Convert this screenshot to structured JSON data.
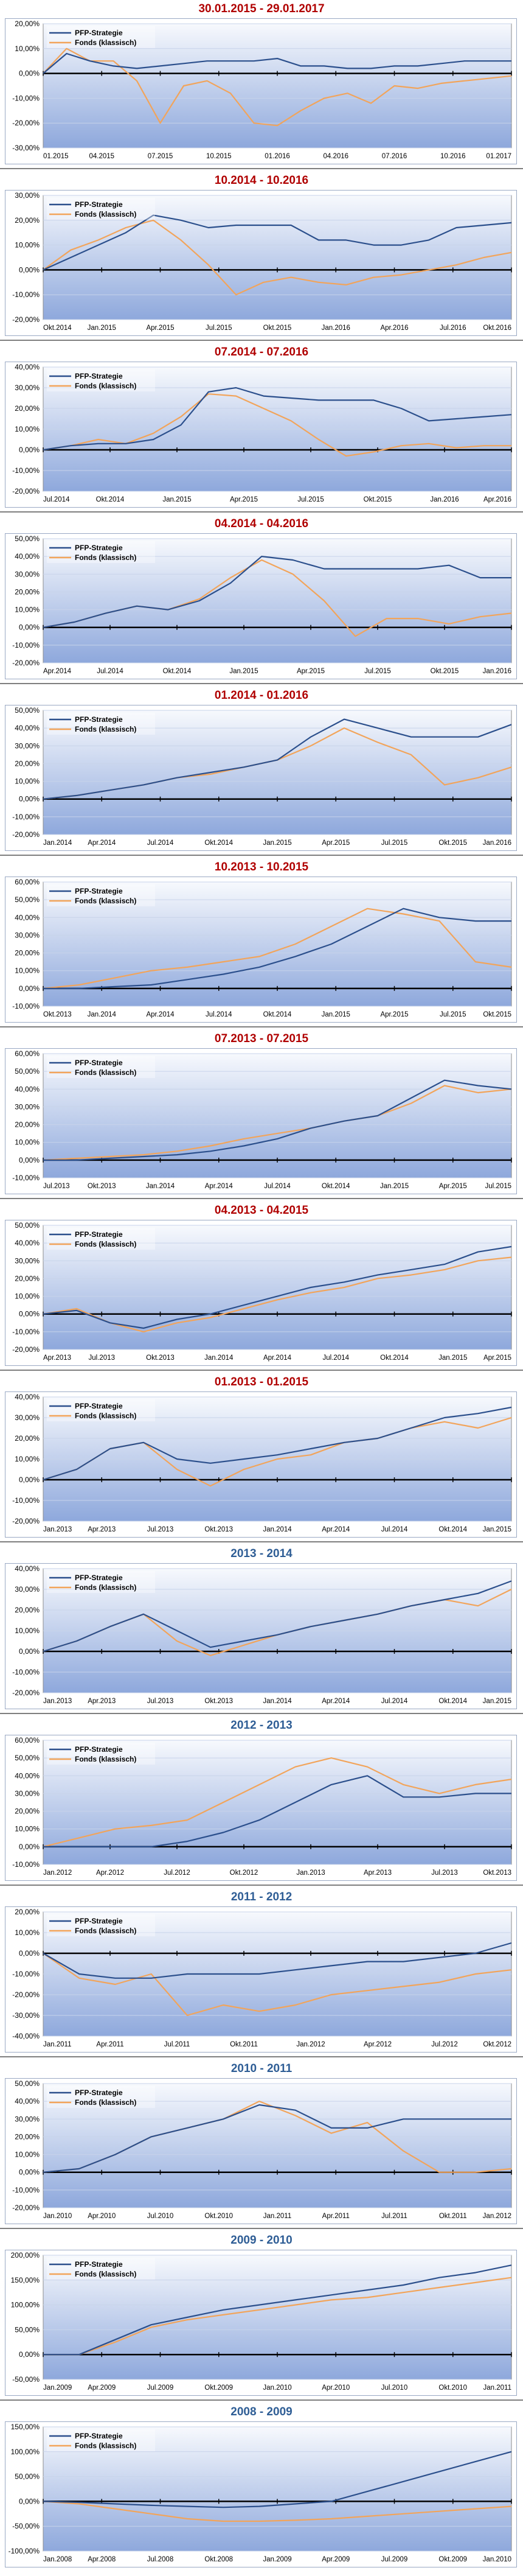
{
  "colors": {
    "strategy": "#2b4f8c",
    "fund": "#f2a45a",
    "title_red": "#b00000",
    "title_blue": "#2e5d95",
    "plot_bg_top": "#f7f9fd",
    "plot_bg_bottom": "#8ea8dc"
  },
  "chart_data": [
    {
      "type": "line",
      "title": "30.01.2015 - 29.01.2017",
      "title_color": "red",
      "legend": "top-left",
      "grid": true,
      "series": [
        {
          "name": "PFP-Strategie",
          "values": [
            0,
            8,
            5,
            3,
            2,
            3,
            4,
            5,
            5,
            5,
            6,
            3,
            3,
            2,
            2,
            3,
            3,
            4,
            5,
            5,
            5
          ]
        },
        {
          "name": "Fonds (klassisch)",
          "values": [
            0,
            10,
            5,
            5,
            -3,
            -20,
            -5,
            -3,
            -8,
            -20,
            -21,
            -15,
            -10,
            -8,
            -12,
            -5,
            -6,
            -4,
            -3,
            -2,
            -1
          ]
        }
      ],
      "yticks": [
        "20,00%",
        "10,00%",
        "0,00%",
        "-10,00%",
        "-20,00%",
        "-30,00%"
      ],
      "ylim": [
        -30,
        20
      ],
      "xticks": [
        "01.2015",
        "04.2015",
        "07.2015",
        "10.2015",
        "01.2016",
        "04.2016",
        "07.2016",
        "10.2016",
        "01.2017"
      ]
    },
    {
      "type": "line",
      "title": "10.2014 - 10.2016",
      "title_color": "red",
      "legend": "top-left",
      "grid": true,
      "series": [
        {
          "name": "PFP-Strategie",
          "values": [
            0,
            5,
            10,
            15,
            22,
            20,
            17,
            18,
            18,
            18,
            12,
            12,
            10,
            10,
            12,
            17,
            18,
            19
          ]
        },
        {
          "name": "Fonds (klassisch)",
          "values": [
            0,
            8,
            12,
            17,
            20,
            12,
            2,
            -10,
            -5,
            -3,
            -5,
            -6,
            -3,
            -2,
            0,
            2,
            5,
            7
          ]
        }
      ],
      "yticks": [
        "30,00%",
        "20,00%",
        "10,00%",
        "0,00%",
        "-10,00%",
        "-20,00%"
      ],
      "ylim": [
        -20,
        30
      ],
      "xticks": [
        "Okt.2014",
        "Jan.2015",
        "Apr.2015",
        "Jul.2015",
        "Okt.2015",
        "Jan.2016",
        "Apr.2016",
        "Jul.2016",
        "Okt.2016"
      ]
    },
    {
      "type": "line",
      "title": "07.2014 - 07.2016",
      "title_color": "red",
      "legend": "top-left",
      "grid": true,
      "series": [
        {
          "name": "PFP-Strategie",
          "values": [
            0,
            2,
            3,
            3,
            5,
            12,
            28,
            30,
            26,
            25,
            24,
            24,
            24,
            20,
            14,
            15,
            16,
            17
          ]
        },
        {
          "name": "Fonds (klassisch)",
          "values": [
            0,
            2,
            5,
            3,
            8,
            16,
            27,
            26,
            20,
            14,
            5,
            -3,
            -1,
            2,
            3,
            1,
            2,
            2
          ]
        }
      ],
      "yticks": [
        "40,00%",
        "30,00%",
        "20,00%",
        "10,00%",
        "0,00%",
        "-10,00%",
        "-20,00%"
      ],
      "ylim": [
        -20,
        40
      ],
      "xticks": [
        "Jul.2014",
        "Okt.2014",
        "Jan.2015",
        "Apr.2015",
        "Jul.2015",
        "Okt.2015",
        "Jan.2016",
        "Apr.2016"
      ]
    },
    {
      "type": "line",
      "title": "04.2014 - 04.2016",
      "title_color": "red",
      "legend": "top-left",
      "grid": true,
      "series": [
        {
          "name": "PFP-Strategie",
          "values": [
            0,
            3,
            8,
            12,
            10,
            15,
            25,
            40,
            38,
            33,
            33,
            33,
            33,
            35,
            28,
            28
          ]
        },
        {
          "name": "Fonds (klassisch)",
          "values": [
            0,
            3,
            8,
            12,
            10,
            16,
            28,
            38,
            30,
            15,
            -5,
            5,
            5,
            2,
            6,
            8
          ]
        }
      ],
      "yticks": [
        "50,00%",
        "40,00%",
        "30,00%",
        "20,00%",
        "10,00%",
        "0,00%",
        "-10,00%",
        "-20,00%"
      ],
      "ylim": [
        -20,
        50
      ],
      "xticks": [
        "Apr.2014",
        "Jul.2014",
        "Okt.2014",
        "Jan.2015",
        "Apr.2015",
        "Jul.2015",
        "Okt.2015",
        "Jan.2016"
      ]
    },
    {
      "type": "line",
      "title": "01.2014 - 01.2016",
      "title_color": "red",
      "legend": "top-left",
      "grid": true,
      "series": [
        {
          "name": "PFP-Strategie",
          "values": [
            0,
            2,
            5,
            8,
            12,
            15,
            18,
            22,
            35,
            45,
            40,
            35,
            35,
            35,
            42
          ]
        },
        {
          "name": "Fonds (klassisch)",
          "values": [
            0,
            2,
            5,
            8,
            12,
            14,
            18,
            22,
            30,
            40,
            32,
            25,
            8,
            12,
            18
          ]
        }
      ],
      "yticks": [
        "50,00%",
        "40,00%",
        "30,00%",
        "20,00%",
        "10,00%",
        "0,00%",
        "-10,00%",
        "-20,00%"
      ],
      "ylim": [
        -20,
        50
      ],
      "xticks": [
        "Jan.2014",
        "Apr.2014",
        "Jul.2014",
        "Okt.2014",
        "Jan.2015",
        "Apr.2015",
        "Jul.2015",
        "Okt.2015",
        "Jan.2016"
      ]
    },
    {
      "type": "line",
      "title": "10.2013 - 10.2015",
      "title_color": "red",
      "legend": "top-left",
      "grid": true,
      "series": [
        {
          "name": "PFP-Strategie",
          "values": [
            0,
            0,
            1,
            2,
            5,
            8,
            12,
            18,
            25,
            35,
            45,
            40,
            38,
            38
          ]
        },
        {
          "name": "Fonds (klassisch)",
          "values": [
            0,
            2,
            6,
            10,
            12,
            15,
            18,
            25,
            35,
            45,
            42,
            38,
            15,
            12
          ]
        }
      ],
      "yticks": [
        "60,00%",
        "50,00%",
        "40,00%",
        "30,00%",
        "20,00%",
        "10,00%",
        "0,00%",
        "-10,00%"
      ],
      "ylim": [
        -10,
        60
      ],
      "xticks": [
        "Okt.2013",
        "Jan.2014",
        "Apr.2014",
        "Jul.2014",
        "Okt.2014",
        "Jan.2015",
        "Apr.2015",
        "Jul.2015",
        "Okt.2015"
      ]
    },
    {
      "type": "line",
      "title": "07.2013 - 07.2015",
      "title_color": "red",
      "legend": "top-left",
      "grid": true,
      "series": [
        {
          "name": "PFP-Strategie",
          "values": [
            0,
            0,
            1,
            2,
            3,
            5,
            8,
            12,
            18,
            22,
            25,
            35,
            45,
            42,
            40
          ]
        },
        {
          "name": "Fonds (klassisch)",
          "values": [
            0,
            1,
            2,
            3,
            5,
            8,
            12,
            15,
            18,
            22,
            25,
            32,
            42,
            38,
            40
          ]
        }
      ],
      "yticks": [
        "60,00%",
        "50,00%",
        "40,00%",
        "30,00%",
        "20,00%",
        "10,00%",
        "0,00%",
        "-10,00%"
      ],
      "ylim": [
        -10,
        60
      ],
      "xticks": [
        "Jul.2013",
        "Okt.2013",
        "Jan.2014",
        "Apr.2014",
        "Jul.2014",
        "Okt.2014",
        "Jan.2015",
        "Apr.2015",
        "Jul.2015"
      ]
    },
    {
      "type": "line",
      "title": "04.2013 - 04.2015",
      "title_color": "red",
      "legend": "top-left",
      "grid": true,
      "series": [
        {
          "name": "PFP-Strategie",
          "values": [
            0,
            2,
            -5,
            -8,
            -3,
            0,
            5,
            10,
            15,
            18,
            22,
            25,
            28,
            35,
            38
          ]
        },
        {
          "name": "Fonds (klassisch)",
          "values": [
            0,
            3,
            -5,
            -10,
            -5,
            -2,
            3,
            8,
            12,
            15,
            20,
            22,
            25,
            30,
            32
          ]
        }
      ],
      "yticks": [
        "50,00%",
        "40,00%",
        "30,00%",
        "20,00%",
        "10,00%",
        "0,00%",
        "-10,00%",
        "-20,00%"
      ],
      "ylim": [
        -20,
        50
      ],
      "xticks": [
        "Apr.2013",
        "Jul.2013",
        "Okt.2013",
        "Jan.2014",
        "Apr.2014",
        "Jul.2014",
        "Okt.2014",
        "Jan.2015",
        "Apr.2015"
      ]
    },
    {
      "type": "line",
      "title": "01.2013 - 01.2015",
      "title_color": "red",
      "legend": "top-left",
      "grid": true,
      "series": [
        {
          "name": "PFP-Strategie",
          "values": [
            0,
            5,
            15,
            18,
            10,
            8,
            10,
            12,
            15,
            18,
            20,
            25,
            30,
            32,
            35
          ]
        },
        {
          "name": "Fonds (klassisch)",
          "values": [
            0,
            5,
            15,
            18,
            5,
            -3,
            5,
            10,
            12,
            18,
            20,
            25,
            28,
            25,
            30
          ]
        }
      ],
      "yticks": [
        "40,00%",
        "30,00%",
        "20,00%",
        "10,00%",
        "0,00%",
        "-10,00%",
        "-20,00%"
      ],
      "ylim": [
        -20,
        40
      ],
      "xticks": [
        "Jan.2013",
        "Apr.2013",
        "Jul.2013",
        "Okt.2013",
        "Jan.2014",
        "Apr.2014",
        "Jul.2014",
        "Okt.2014",
        "Jan.2015"
      ]
    },
    {
      "type": "line",
      "title": "2013 - 2014",
      "title_color": "blue",
      "legend": "top-left",
      "grid": true,
      "series": [
        {
          "name": "PFP-Strategie",
          "values": [
            0,
            5,
            12,
            18,
            10,
            2,
            5,
            8,
            12,
            15,
            18,
            22,
            25,
            28,
            34
          ]
        },
        {
          "name": "Fonds (klassisch)",
          "values": [
            0,
            5,
            12,
            18,
            5,
            -2,
            3,
            8,
            12,
            15,
            18,
            22,
            25,
            22,
            30
          ]
        }
      ],
      "yticks": [
        "40,00%",
        "30,00%",
        "20,00%",
        "10,00%",
        "0,00%",
        "-10,00%",
        "-20,00%"
      ],
      "ylim": [
        -20,
        40
      ],
      "xticks": [
        "Jan.2013",
        "Apr.2013",
        "Jul.2013",
        "Okt.2013",
        "Jan.2014",
        "Apr.2014",
        "Jul.2014",
        "Okt.2014",
        "Jan.2015"
      ]
    },
    {
      "type": "line",
      "title": "2012 - 2013",
      "title_color": "blue",
      "legend": "top-left",
      "grid": true,
      "series": [
        {
          "name": "PFP-Strategie",
          "values": [
            0,
            0,
            0,
            0,
            3,
            8,
            15,
            25,
            35,
            40,
            28,
            28,
            30,
            30
          ]
        },
        {
          "name": "Fonds (klassisch)",
          "values": [
            0,
            5,
            10,
            12,
            15,
            25,
            35,
            45,
            50,
            45,
            35,
            30,
            35,
            38
          ]
        }
      ],
      "yticks": [
        "60,00%",
        "50,00%",
        "40,00%",
        "30,00%",
        "20,00%",
        "10,00%",
        "0,00%",
        "-10,00%"
      ],
      "ylim": [
        -10,
        60
      ],
      "xticks": [
        "Jan.2012",
        "Apr.2012",
        "Jul.2012",
        "Okt.2012",
        "Jan.2013",
        "Apr.2013",
        "Jul.2013",
        "Okt.2013"
      ]
    },
    {
      "type": "line",
      "title": "2011 - 2012",
      "title_color": "blue",
      "legend": "top-left",
      "grid": true,
      "series": [
        {
          "name": "PFP-Strategie",
          "values": [
            0,
            -10,
            -12,
            -12,
            -10,
            -10,
            -10,
            -8,
            -6,
            -4,
            -4,
            -2,
            0,
            5
          ]
        },
        {
          "name": "Fonds (klassisch)",
          "values": [
            0,
            -12,
            -15,
            -10,
            -30,
            -25,
            -28,
            -25,
            -20,
            -18,
            -16,
            -14,
            -10,
            -8
          ]
        }
      ],
      "yticks": [
        "20,00%",
        "10,00%",
        "0,00%",
        "-10,00%",
        "-20,00%",
        "-30,00%",
        "-40,00%"
      ],
      "ylim": [
        -40,
        20
      ],
      "xticks": [
        "Jan.2011",
        "Apr.2011",
        "Jul.2011",
        "Okt.2011",
        "Jan.2012",
        "Apr.2012",
        "Jul.2012",
        "Okt.2012"
      ]
    },
    {
      "type": "line",
      "title": "2010 - 2011",
      "title_color": "blue",
      "legend": "top-left",
      "grid": true,
      "series": [
        {
          "name": "PFP-Strategie",
          "values": [
            0,
            2,
            10,
            20,
            25,
            30,
            38,
            35,
            25,
            25,
            30,
            30,
            30,
            30
          ]
        },
        {
          "name": "Fonds (klassisch)",
          "values": [
            0,
            2,
            10,
            20,
            25,
            30,
            40,
            32,
            22,
            28,
            12,
            0,
            0,
            2
          ]
        }
      ],
      "yticks": [
        "50,00%",
        "40,00%",
        "30,00%",
        "20,00%",
        "10,00%",
        "0,00%",
        "-10,00%",
        "-20,00%"
      ],
      "ylim": [
        -20,
        50
      ],
      "xticks": [
        "Jan.2010",
        "Apr.2010",
        "Jul.2010",
        "Okt.2010",
        "Jan.2011",
        "Apr.2011",
        "Jul.2011",
        "Okt.2011",
        "Jan.2012"
      ]
    },
    {
      "type": "line",
      "title": "2009 - 2010",
      "title_color": "blue",
      "legend": "top-left",
      "grid": true,
      "series": [
        {
          "name": "PFP-Strategie",
          "values": [
            0,
            0,
            30,
            60,
            75,
            90,
            100,
            110,
            120,
            130,
            140,
            155,
            165,
            180
          ]
        },
        {
          "name": "Fonds (klassisch)",
          "values": [
            0,
            0,
            25,
            55,
            70,
            80,
            90,
            100,
            110,
            115,
            125,
            135,
            145,
            155
          ]
        }
      ],
      "yticks": [
        "200,00%",
        "150,00%",
        "100,00%",
        "50,00%",
        "0,00%",
        "-50,00%"
      ],
      "ylim": [
        -50,
        200
      ],
      "xticks": [
        "Jan.2009",
        "Apr.2009",
        "Jul.2009",
        "Okt.2009",
        "Jan.2010",
        "Apr.2010",
        "Jul.2010",
        "Okt.2010",
        "Jan.2011"
      ]
    },
    {
      "type": "line",
      "title": "2008 - 2009",
      "title_color": "blue",
      "legend": "top-left",
      "grid": true,
      "series": [
        {
          "name": "PFP-Strategie",
          "values": [
            0,
            -2,
            -5,
            -8,
            -10,
            -12,
            -10,
            -5,
            0,
            20,
            40,
            60,
            80,
            100
          ]
        },
        {
          "name": "Fonds (klassisch)",
          "values": [
            0,
            -5,
            -15,
            -25,
            -35,
            -40,
            -40,
            -38,
            -35,
            -30,
            -25,
            -20,
            -15,
            -10
          ]
        }
      ],
      "yticks": [
        "150,00%",
        "100,00%",
        "50,00%",
        "0,00%",
        "-50,00%",
        "-100,00%"
      ],
      "ylim": [
        -100,
        150
      ],
      "xticks": [
        "Jan.2008",
        "Apr.2008",
        "Jul.2008",
        "Okt.2008",
        "Jan.2009",
        "Apr.2009",
        "Jul.2009",
        "Okt.2009",
        "Jan.2010"
      ]
    }
  ]
}
